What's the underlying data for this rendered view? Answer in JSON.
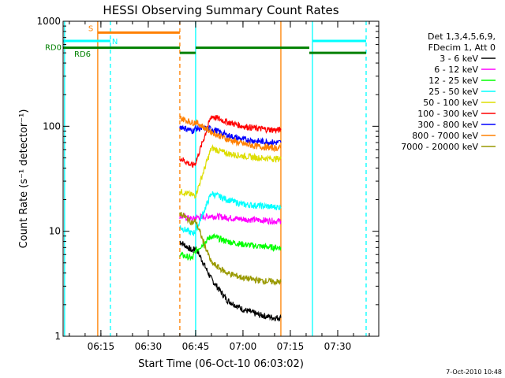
{
  "chart_data": {
    "type": "line",
    "title": "HESSI Observing Summary Count Rates",
    "xlabel": "Start Time (06-Oct-10 06:03:02)",
    "ylabel": "Count Rate (s⁻¹ detector⁻¹)",
    "y_scale": "log",
    "ylim": [
      1,
      1000
    ],
    "xlim": [
      "06:03:02",
      "07:43:00"
    ],
    "x_ticks": [
      "06:15",
      "06:30",
      "06:45",
      "07:00",
      "07:15",
      "07:30"
    ],
    "y_ticks": [
      "1",
      "10",
      "100",
      "1000"
    ],
    "grid": false,
    "legend_placement": "right",
    "legend_header": [
      "Det 1,3,4,5,6,9,",
      "FDecim 1, Att 0"
    ],
    "footer_date": "7-Oct-2010 10:48",
    "series": [
      {
        "name": "3 - 6 keV",
        "color": "#000000",
        "x": [
          "06:40",
          "06:44",
          "06:45",
          "06:50",
          "06:55",
          "07:00",
          "07:05",
          "07:10",
          "07:12"
        ],
        "y": [
          8,
          6.5,
          7,
          3.5,
          2.2,
          1.8,
          1.6,
          1.5,
          1.5
        ]
      },
      {
        "name": "6 - 12 keV",
        "color": "#ff00ff",
        "x": [
          "06:40",
          "06:44",
          "06:45",
          "06:50",
          "06:55",
          "07:00",
          "07:05",
          "07:10",
          "07:12"
        ],
        "y": [
          14,
          13,
          13.5,
          14,
          13.5,
          13,
          12.8,
          12.5,
          12.5
        ]
      },
      {
        "name": "12 - 25 keV",
        "color": "#00ff00",
        "x": [
          "06:40",
          "06:44",
          "06:45",
          "06:50",
          "06:55",
          "07:00",
          "07:05",
          "07:10",
          "07:12"
        ],
        "y": [
          6,
          5.5,
          6.5,
          9,
          8,
          7.5,
          7.2,
          7,
          7
        ]
      },
      {
        "name": "25 - 50 keV",
        "color": "#00ffff",
        "x": [
          "06:40",
          "06:44",
          "06:45",
          "06:50",
          "06:55",
          "07:00",
          "07:05",
          "07:10",
          "07:12"
        ],
        "y": [
          11,
          9.5,
          10,
          23,
          20,
          18,
          17.5,
          17,
          17
        ]
      },
      {
        "name": "50 - 100 keV",
        "color": "#dddd00",
        "x": [
          "06:40",
          "06:44",
          "06:45",
          "06:50",
          "06:55",
          "07:00",
          "07:05",
          "07:10",
          "07:12"
        ],
        "y": [
          24,
          22,
          22,
          62,
          55,
          52,
          50,
          49,
          49
        ]
      },
      {
        "name": "100 - 300 keV",
        "color": "#ff0000",
        "x": [
          "06:40",
          "06:44",
          "06:45",
          "06:50",
          "06:55",
          "07:00",
          "07:05",
          "07:10",
          "07:12"
        ],
        "y": [
          50,
          42,
          45,
          125,
          110,
          100,
          95,
          92,
          92
        ]
      },
      {
        "name": "300 - 800 keV",
        "color": "#0000ff",
        "x": [
          "06:40",
          "06:44",
          "06:45",
          "06:50",
          "06:55",
          "07:00",
          "07:05",
          "07:10",
          "07:12"
        ],
        "y": [
          100,
          90,
          95,
          95,
          82,
          75,
          72,
          70,
          70
        ]
      },
      {
        "name": "800 - 7000 keV",
        "color": "#ff8000",
        "x": [
          "06:40",
          "06:44",
          "06:45",
          "06:50",
          "06:55",
          "07:00",
          "07:05",
          "07:10",
          "07:12"
        ],
        "y": [
          120,
          108,
          110,
          88,
          75,
          68,
          64,
          62,
          62
        ]
      },
      {
        "name": "7000 - 20000 keV",
        "color": "#999900",
        "x": [
          "06:40",
          "06:44",
          "06:45",
          "06:50",
          "06:55",
          "07:00",
          "07:05",
          "07:10",
          "07:12"
        ],
        "y": [
          15,
          12,
          12.5,
          5,
          4,
          3.6,
          3.4,
          3.3,
          3.3
        ]
      }
    ],
    "flag_bars": [
      {
        "label": "S",
        "color": "#ff8000",
        "y": 780,
        "segments": [
          [
            "06:14",
            "06:40"
          ]
        ]
      },
      {
        "label": "N",
        "color": "#00ffff",
        "y": 650,
        "segments": [
          [
            "06:03:02",
            "06:18"
          ],
          [
            "07:22",
            "07:39"
          ]
        ]
      },
      {
        "label": "RD0",
        "color": "#008000",
        "y": 560,
        "segments": [
          [
            "06:03:02",
            "06:40"
          ],
          [
            "06:45",
            "07:21"
          ]
        ]
      },
      {
        "label": "RD6",
        "color": "#008000",
        "y": 500,
        "segments": [
          [
            "06:40",
            "06:45"
          ],
          [
            "07:21",
            "07:39"
          ]
        ]
      }
    ],
    "vertical_lines": [
      {
        "x": "06:03:30",
        "color": "#00ffff",
        "style": "solid"
      },
      {
        "x": "06:14",
        "color": "#ff8000",
        "style": "solid"
      },
      {
        "x": "06:18",
        "color": "#00ffff",
        "style": "dashed"
      },
      {
        "x": "06:40",
        "color": "#ff8000",
        "style": "dashed"
      },
      {
        "x": "06:45",
        "color": "#00ffff",
        "style": "solid"
      },
      {
        "x": "07:12",
        "color": "#ff8000",
        "style": "solid"
      },
      {
        "x": "07:22",
        "color": "#00ffff",
        "style": "solid"
      },
      {
        "x": "07:39",
        "color": "#00ffff",
        "style": "dashed"
      }
    ]
  }
}
